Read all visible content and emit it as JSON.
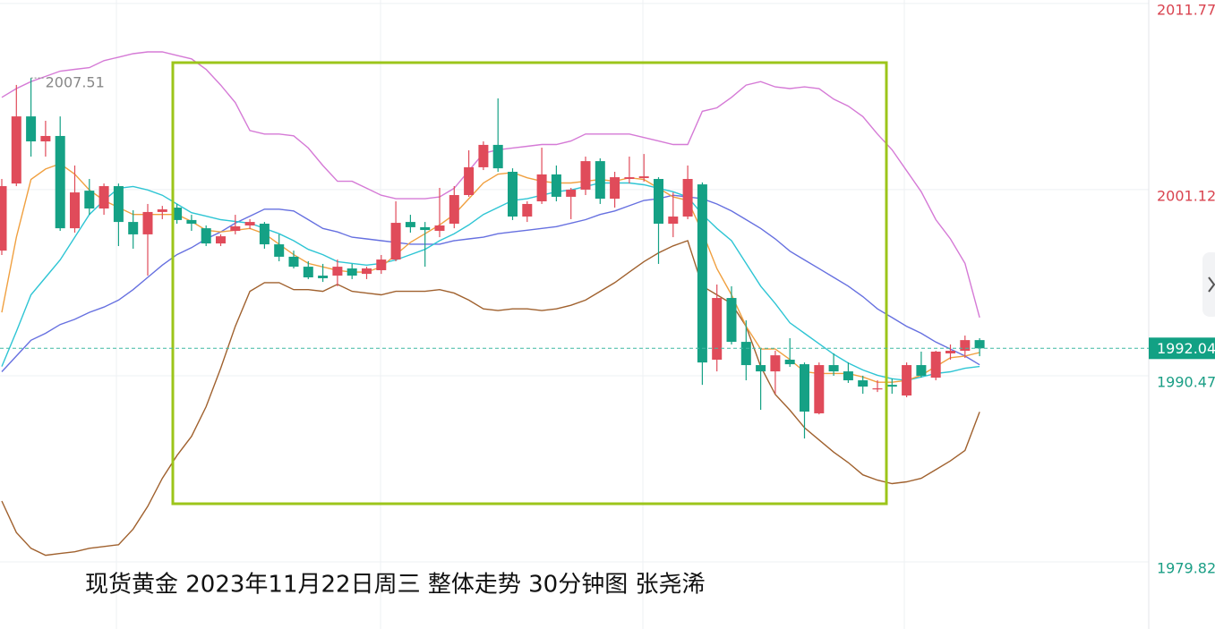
{
  "chart_data": {
    "type": "candlestick",
    "title": "现货黄金 2023年11月22日周三 整体走势 30分钟图 张尧浠",
    "categories": [
      null,
      null,
      null,
      null,
      null,
      null,
      null,
      null,
      null,
      null,
      null,
      null,
      null,
      null,
      null,
      null,
      null,
      null,
      null,
      null,
      null,
      null,
      null,
      null,
      null,
      null,
      null,
      null,
      null,
      null,
      null,
      null,
      null,
      null,
      null,
      null,
      null,
      null,
      null,
      null,
      null,
      null,
      null,
      null,
      null,
      null,
      null,
      null,
      null,
      null,
      null,
      null,
      null,
      null,
      null,
      null,
      null,
      null,
      null,
      null,
      null,
      null,
      null,
      null,
      null,
      null,
      null,
      null
    ],
    "open": [
      1997.63,
      2001.47,
      2005.31,
      2003.88,
      2004.19,
      1998.91,
      2001.06,
      2000.04,
      2001.32,
      1999.27,
      1998.56,
      1999.84,
      2000.09,
      1999.38,
      1998.91,
      1998.04,
      1998.76,
      1999.07,
      1999.17,
      1997.99,
      1997.28,
      1996.71,
      1996.2,
      1996.2,
      1996.61,
      1996.3,
      1996.51,
      1997.12,
      1999.27,
      1998.97,
      1998.76,
      1999.17,
      2000.81,
      2002.4,
      2003.68,
      2002.14,
      1999.58,
      2000.45,
      2001.99,
      2000.71,
      2001.12,
      2002.75,
      2000.6,
      2001.73,
      2001.78,
      2001.73,
      1999.17,
      1999.58,
      2001.42,
      1991.39,
      1994.92,
      1992.41,
      1991.08,
      1990.72,
      1991.39,
      1991.13,
      1988.32,
      1991.08,
      1990.72,
      1990.21,
      1989.7,
      1989.95,
      1989.34,
      1991.08,
      1990.36,
      1991.75,
      1991.9,
      1992.51
    ],
    "high": [
      2001.73,
      2007.11,
      2007.51,
      2005.06,
      2005.31,
      2002.5,
      2001.73,
      2001.47,
      2001.47,
      1999.94,
      2000.3,
      2000.19,
      2000.3,
      1999.68,
      1999.07,
      1998.56,
      1999.68,
      1999.43,
      1999.27,
      1998.56,
      1997.63,
      1997.02,
      1996.87,
      1997.12,
      1996.87,
      1996.71,
      1997.38,
      2000.45,
      1999.68,
      1999.27,
      2001.22,
      2001.32,
      2003.37,
      2003.88,
      2006.34,
      2002.34,
      2000.45,
      2003.52,
      2002.5,
      2001.22,
      2003.01,
      2002.91,
      2002.14,
      2003.01,
      2003.16,
      2001.83,
      2000.96,
      2002.5,
      2001.53,
      1995.69,
      1995.59,
      1993.64,
      1992.0,
      1991.9,
      1992.62,
      1991.23,
      1991.23,
      1991.75,
      1991.23,
      1990.47,
      1990.21,
      1990.31,
      1991.23,
      1991.85,
      1991.9,
      1992.26,
      1992.77,
      1992.62
    ],
    "low": [
      1997.38,
      2001.32,
      2003.01,
      2003.01,
      1998.76,
      1998.66,
      1999.68,
      1999.68,
      1997.89,
      1997.74,
      1996.2,
      1999.43,
      1999.17,
      1998.76,
      1997.89,
      1997.89,
      1998.56,
      1998.86,
      1997.74,
      1997.02,
      1996.61,
      1996.0,
      1995.84,
      1995.59,
      1996.0,
      1996.0,
      1996.3,
      1997.02,
      1998.66,
      1996.71,
      1998.4,
      1998.91,
      2000.71,
      2002.24,
      2002.14,
      1999.38,
      1999.27,
      2000.3,
      2000.45,
      1999.43,
      2000.81,
      2000.3,
      2000.09,
      2001.47,
      2001.58,
      1996.87,
      1998.4,
      1999.43,
      1989.95,
      1990.72,
      1992.26,
      1990.21,
      1988.52,
      1989.44,
      1990.98,
      1986.88,
      1988.26,
      1990.47,
      1990.06,
      1989.44,
      1989.54,
      1989.44,
      1989.24,
      1990.36,
      1990.21,
      1991.39,
      1991.49,
      1991.59
    ],
    "close": [
      2001.32,
      2005.31,
      2003.88,
      2004.19,
      1998.91,
      2000.96,
      2000.04,
      2001.32,
      1999.27,
      1998.56,
      1999.84,
      1999.99,
      1999.38,
      1999.17,
      1998.04,
      1998.45,
      1999.02,
      1999.27,
      1997.99,
      1997.28,
      1996.71,
      1996.1,
      1996.05,
      1996.71,
      1996.2,
      1996.61,
      1997.12,
      1999.22,
      1998.97,
      1998.81,
      1999.07,
      2000.81,
      2002.4,
      2003.68,
      2002.34,
      1999.58,
      2000.3,
      2001.99,
      2000.71,
      2001.12,
      2002.75,
      2000.6,
      2001.83,
      2001.83,
      2001.88,
      1999.17,
      1999.58,
      2001.73,
      1991.23,
      1994.92,
      1992.41,
      1991.08,
      1990.72,
      1991.64,
      1991.13,
      1988.42,
      1991.08,
      1990.72,
      1990.21,
      1989.85,
      1989.75,
      1989.85,
      1991.08,
      1990.47,
      1991.85,
      1991.9,
      1992.51,
      1992.04
    ],
    "up_color": "#e04b5a",
    "down_color": "#15a185",
    "lines": [
      {
        "color": "#d57ad6",
        "values": [
          2006.4,
          2006.9,
          2007.3,
          2007.6,
          2007.9,
          2008.0,
          2008.1,
          2008.5,
          2008.7,
          2008.9,
          2009.0,
          2009.0,
          2008.8,
          2008.6,
          2008.0,
          2007.1,
          2006.1,
          2004.5,
          2004.3,
          2004.3,
          2004.2,
          2003.5,
          2002.5,
          2001.6,
          2001.6,
          2001.2,
          2000.8,
          2000.6,
          2000.6,
          2000.6,
          2000.7,
          2001.2,
          2002.2,
          2003.2,
          2003.4,
          2003.5,
          2003.6,
          2003.7,
          2003.7,
          2003.9,
          2004.3,
          2004.3,
          2004.3,
          2004.3,
          2004.1,
          2003.9,
          2003.7,
          2003.7,
          2005.6,
          2005.8,
          2006.4,
          2007.1,
          2007.3,
          2007.0,
          2006.9,
          2007.0,
          2006.9,
          2006.3,
          2005.9,
          2005.3,
          2004.3,
          2003.4,
          2002.2,
          2001.0,
          1999.4,
          1998.3,
          1996.9,
          1993.8
        ]
      },
      {
        "color": "#a0612e",
        "values": [
          1983.3,
          1981.5,
          1980.6,
          1980.2,
          1980.3,
          1980.4,
          1980.6,
          1980.7,
          1980.8,
          1981.7,
          1983.0,
          1984.6,
          1985.9,
          1987.0,
          1988.7,
          1990.9,
          1993.3,
          1995.3,
          1995.8,
          1995.8,
          1995.4,
          1995.4,
          1995.3,
          1995.7,
          1995.3,
          1995.2,
          1995.1,
          1995.3,
          1995.3,
          1995.3,
          1995.4,
          1995.2,
          1994.8,
          1994.3,
          1994.2,
          1994.3,
          1994.3,
          1994.2,
          1994.3,
          1994.5,
          1994.8,
          1995.3,
          1995.8,
          1996.4,
          1997.0,
          1997.5,
          1997.9,
          1998.2,
          1995.6,
          1995.1,
          1994.6,
          1993.3,
          1991.0,
          1989.4,
          1988.5,
          1987.5,
          1986.8,
          1986.1,
          1985.5,
          1984.8,
          1984.5,
          1984.3,
          1984.4,
          1984.6,
          1985.1,
          1985.6,
          1986.2,
          1988.4
        ]
      },
      {
        "color": "#6670e0",
        "values": [
          1990.7,
          1991.6,
          1992.5,
          1992.9,
          1993.4,
          1993.7,
          1994.1,
          1994.4,
          1994.8,
          1995.4,
          1996.1,
          1996.8,
          1997.4,
          1997.8,
          1998.3,
          1998.7,
          1999.2,
          1999.6,
          2000.0,
          2000.0,
          1999.9,
          1999.4,
          1998.9,
          1998.7,
          1998.4,
          1998.3,
          1998.2,
          1998.1,
          1998.0,
          1998.0,
          1998.0,
          1998.2,
          1998.3,
          1998.4,
          1998.6,
          1998.7,
          1998.8,
          1998.9,
          1999.0,
          1999.2,
          1999.4,
          1999.7,
          1999.9,
          2000.2,
          2000.5,
          2000.6,
          2000.8,
          2000.7,
          2000.6,
          2000.3,
          1999.9,
          1999.4,
          1998.9,
          1998.3,
          1997.6,
          1997.1,
          1996.6,
          1996.1,
          1995.6,
          1995.0,
          1994.3,
          1993.8,
          1993.3,
          1992.9,
          1992.4,
          1992.0,
          1991.6,
          1991.1
        ]
      },
      {
        "color": "#2ec5d4",
        "values": [
          1991.0,
          1993.0,
          1995.1,
          1996.1,
          1997.1,
          1998.4,
          1999.7,
          2000.5,
          2001.2,
          2001.3,
          2001.1,
          2000.8,
          2000.3,
          1999.8,
          1999.6,
          1999.4,
          1999.3,
          1999.2,
          1998.9,
          1998.6,
          1998.2,
          1997.7,
          1997.4,
          1997.0,
          1996.9,
          1996.8,
          1996.9,
          1997.1,
          1997.4,
          1997.7,
          1998.2,
          1998.6,
          1999.1,
          1999.7,
          2000.1,
          2000.5,
          2000.6,
          2000.8,
          2001.0,
          2001.1,
          2001.3,
          2001.5,
          2001.5,
          2001.5,
          2001.4,
          2001.2,
          2001.0,
          2000.7,
          1999.7,
          1998.9,
          1998.2,
          1996.9,
          1995.6,
          1994.6,
          1993.5,
          1992.9,
          1992.3,
          1991.7,
          1991.2,
          1990.8,
          1990.5,
          1990.3,
          1990.2,
          1990.4,
          1990.6,
          1990.7,
          1990.9,
          1991.0
        ]
      },
      {
        "color": "#f0a040",
        "values": [
          1994.1,
          1998.4,
          2001.7,
          2002.3,
          2002.6,
          2002.0,
          2001.1,
          2000.5,
          2000.1,
          1999.7,
          1999.7,
          1999.7,
          1999.7,
          1999.3,
          1998.8,
          1998.7,
          1998.8,
          1998.9,
          1998.6,
          1998.0,
          1997.4,
          1996.9,
          1996.7,
          1996.5,
          1996.4,
          1996.4,
          1996.7,
          1997.4,
          1998.1,
          1998.6,
          1999.1,
          1999.7,
          2000.6,
          2001.5,
          2002.0,
          2002.1,
          2001.8,
          2001.6,
          2001.5,
          2001.5,
          2001.6,
          2001.7,
          2001.6,
          2001.8,
          2001.7,
          2001.2,
          2000.7,
          2000.5,
          1998.7,
          1996.6,
          1995.1,
          1993.3,
          1992.0,
          1992.0,
          1991.4,
          1990.7,
          1990.6,
          1990.6,
          1990.6,
          1990.4,
          1990.1,
          1990.1,
          1990.2,
          1990.5,
          1991.0,
          1991.5,
          1991.6,
          1991.8
        ]
      }
    ],
    "ylim": [
      1975.98,
      2011.97
    ],
    "yticks": [
      1979.82,
      1990.47,
      2001.12,
      2011.77
    ],
    "grid": true
  }
}
